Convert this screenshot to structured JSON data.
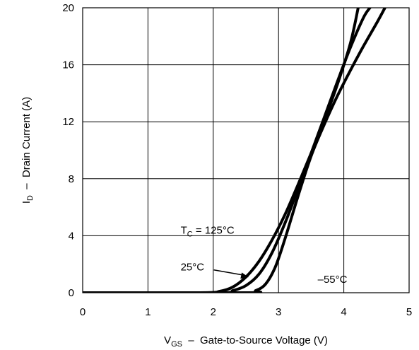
{
  "chart_data": {
    "type": "line",
    "xlabel": {
      "main": "V",
      "sub": "GS",
      "rest": "  –  Gate-to-Source Voltage (V)"
    },
    "ylabel": {
      "main": "I",
      "sub": "D",
      "rest": "  –  Drain Current (A)"
    },
    "xlim": [
      0,
      5
    ],
    "ylim": [
      0,
      20
    ],
    "xticks": [
      0,
      1,
      2,
      3,
      4,
      5
    ],
    "yticks": [
      0,
      4,
      8,
      12,
      16,
      20
    ],
    "xtick_labels": [
      "0",
      "1",
      "2",
      "3",
      "4",
      "5"
    ],
    "ytick_labels": [
      "0",
      "4",
      "8",
      "12",
      "16",
      "20"
    ],
    "grid": true,
    "series": [
      {
        "name": "T_C = 125°C",
        "x": [
          0,
          1.8,
          2.1,
          2.3,
          2.5,
          2.7,
          2.9,
          3.1,
          3.3,
          3.5,
          3.7,
          3.9,
          4.1,
          4.22
        ],
        "y": [
          0,
          0,
          0.1,
          0.4,
          1.1,
          2.2,
          3.7,
          5.5,
          7.6,
          9.8,
          12.1,
          14.6,
          17.5,
          20
        ]
      },
      {
        "name": "25°C",
        "x": [
          0,
          2.1,
          2.3,
          2.5,
          2.7,
          2.9,
          3.1,
          3.3,
          3.5,
          3.7,
          3.9,
          4.1,
          4.3,
          4.4
        ],
        "y": [
          0,
          0,
          0.15,
          0.5,
          1.3,
          2.8,
          4.9,
          7.3,
          9.8,
          12.3,
          14.8,
          17.2,
          19.3,
          20
        ]
      },
      {
        "name": "–55°C",
        "x": [
          0,
          2.5,
          2.65,
          2.8,
          2.95,
          3.1,
          3.3,
          3.5,
          3.7,
          3.9,
          4.1,
          4.3,
          4.5,
          4.63
        ],
        "y": [
          0,
          0,
          0.15,
          0.6,
          1.8,
          3.8,
          6.8,
          9.6,
          11.8,
          13.8,
          15.6,
          17.3,
          18.9,
          20
        ]
      }
    ],
    "annotations": {
      "t125": {
        "main": "T",
        "sub": "C",
        "rest": " = 125°C",
        "x": 1.5,
        "y": 4.4
      },
      "t25": {
        "text": "25°C",
        "x": 1.5,
        "y": 1.8
      },
      "tm55": {
        "text": "–55°C",
        "x": 3.6,
        "y": 0.95
      }
    }
  }
}
